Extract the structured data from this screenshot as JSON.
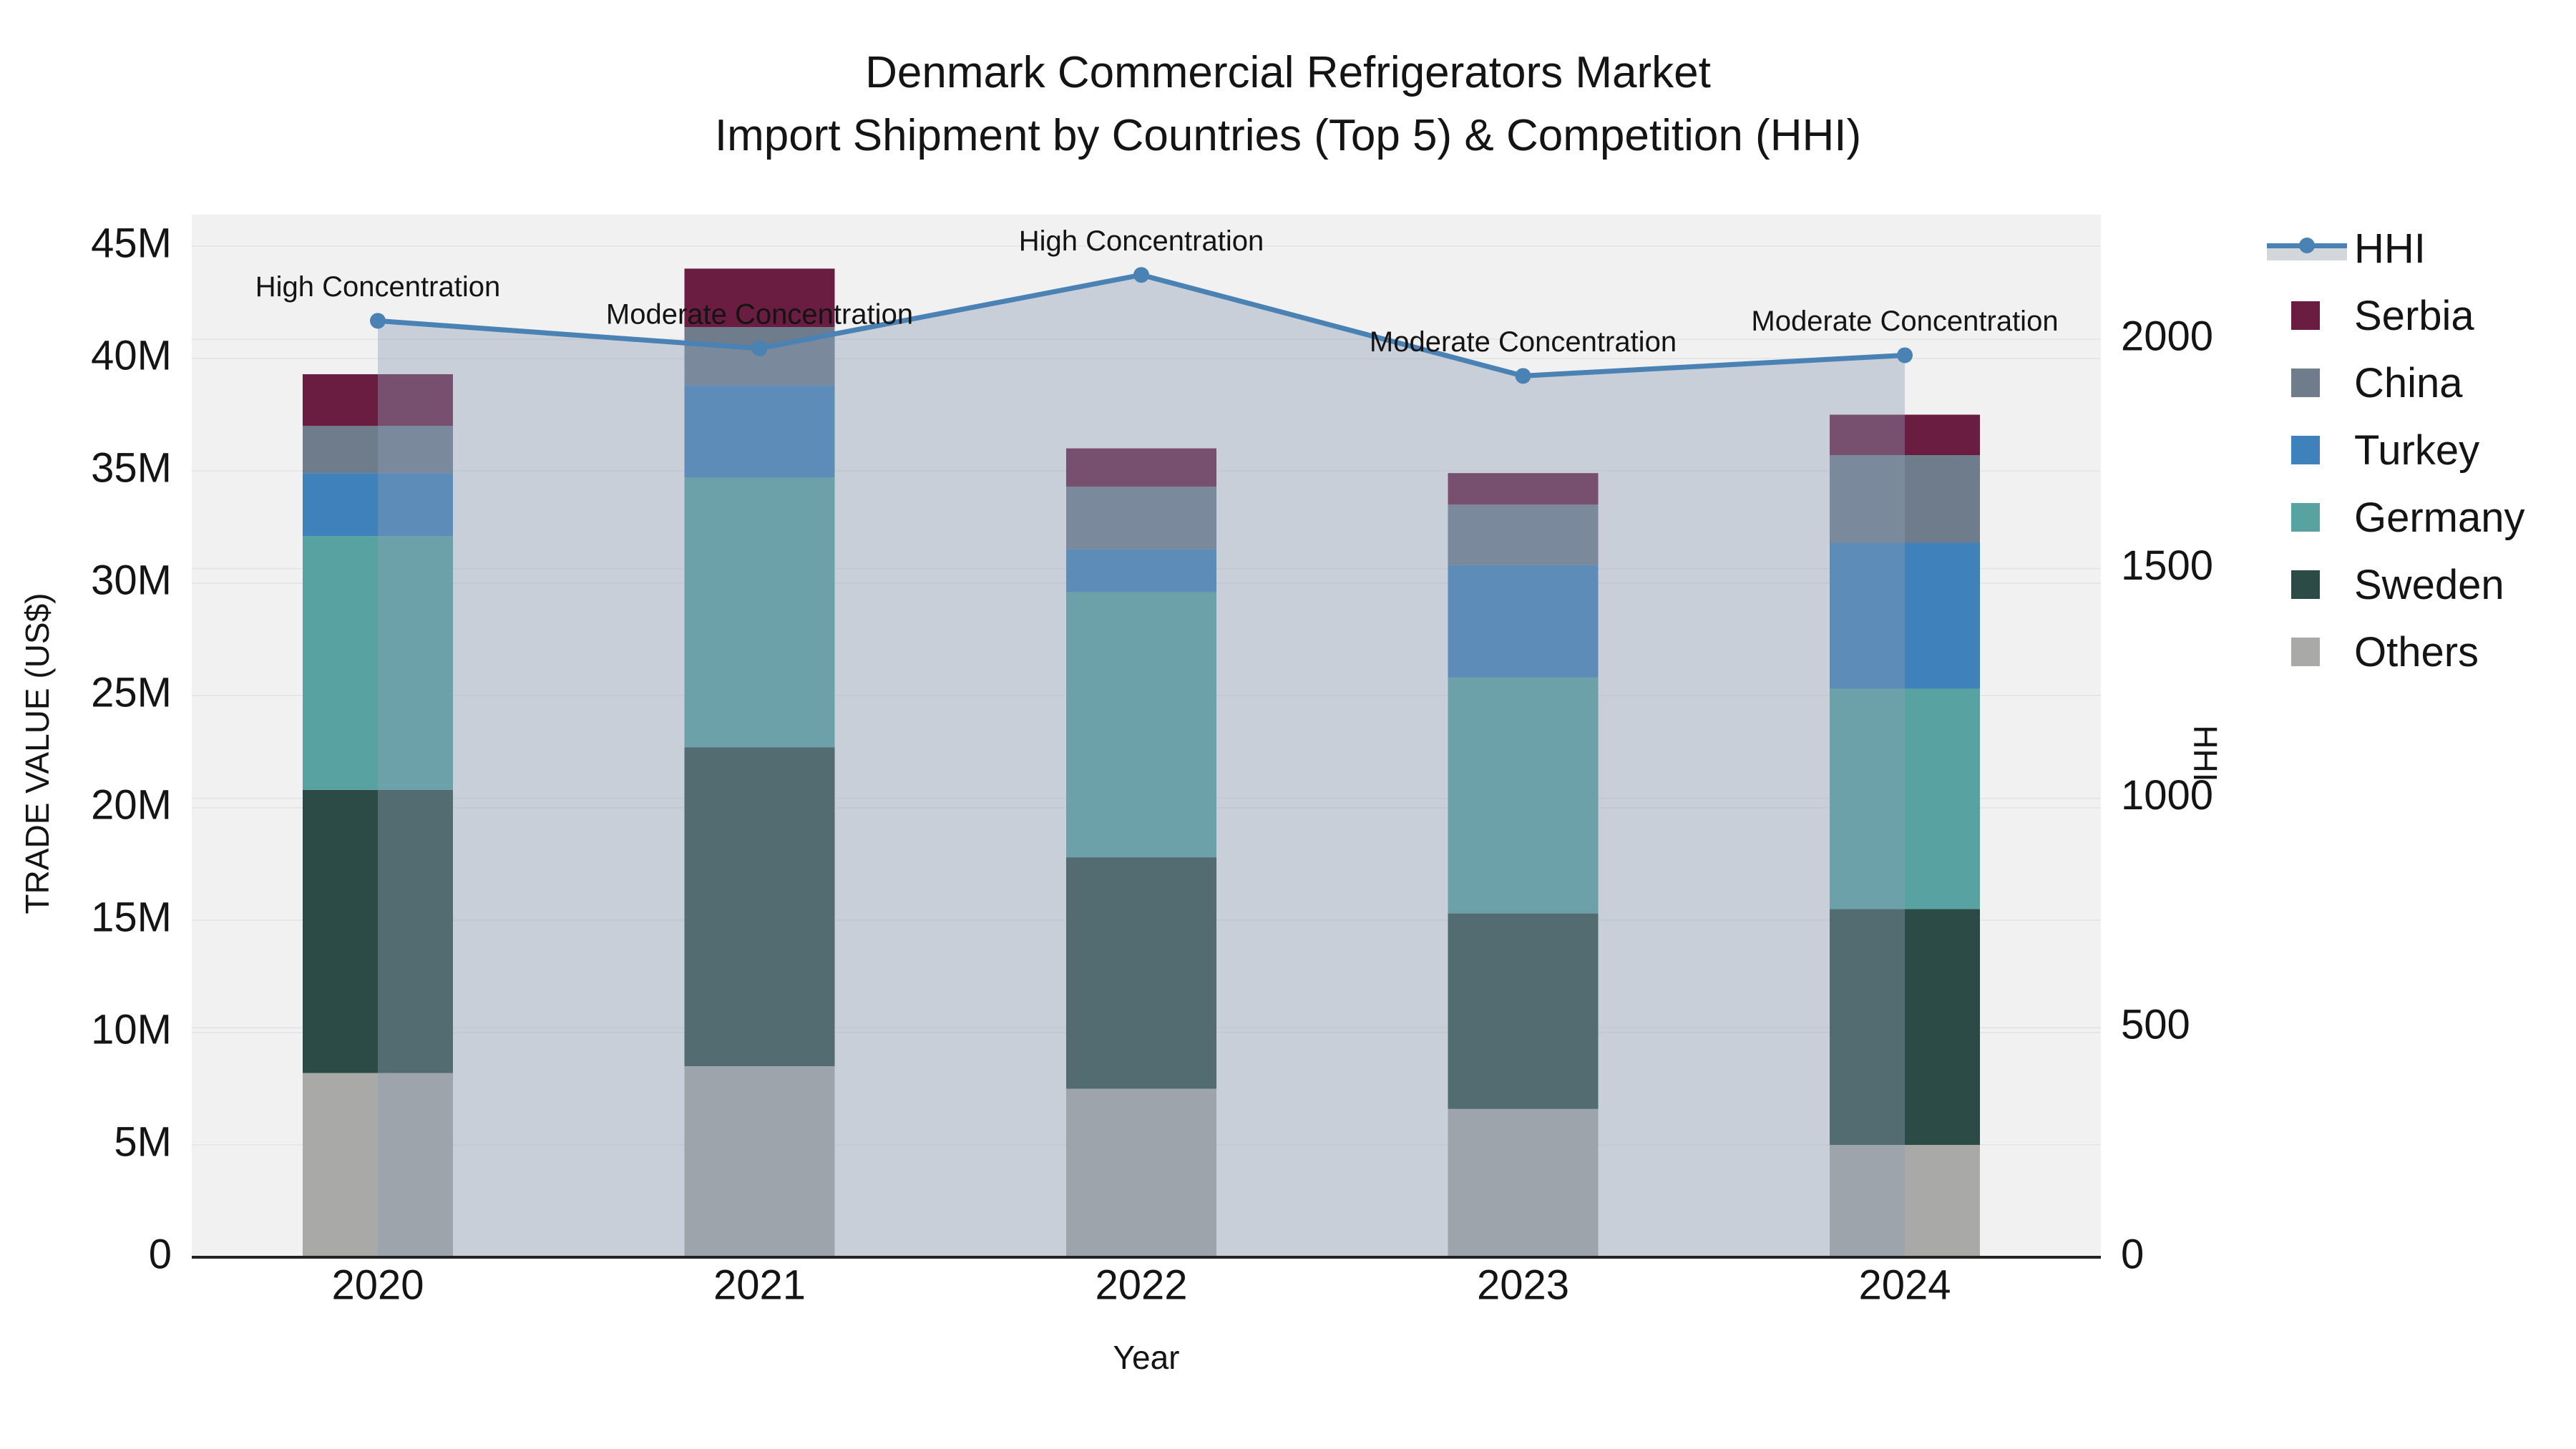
{
  "title": {
    "line1": "Denmark Commercial Refrigerators Market",
    "line2": "Import Shipment by Countries (Top 5) & Competition (HHI)"
  },
  "axes": {
    "left": {
      "title": "TRADE VALUE (US$)"
    },
    "right": {
      "title": "HHI"
    },
    "x": {
      "title": "Year"
    }
  },
  "chart_data": {
    "type": "bar",
    "subtype": "stacked bars with overlay line (area fill to zero)",
    "categories": [
      "2020",
      "2021",
      "2022",
      "2023",
      "2024"
    ],
    "values_unit": "USD millions",
    "series": [
      {
        "name": "Others",
        "color": "#a9a9a7",
        "values": [
          8.2,
          8.5,
          7.5,
          6.6,
          5.0
        ]
      },
      {
        "name": "Sweden",
        "color": "#2c4b46",
        "values": [
          12.6,
          14.2,
          10.3,
          8.7,
          10.5
        ]
      },
      {
        "name": "Germany",
        "color": "#58a3a2",
        "values": [
          11.3,
          12.0,
          11.8,
          10.5,
          9.8
        ]
      },
      {
        "name": "Turkey",
        "color": "#3f81bb",
        "values": [
          2.8,
          4.1,
          1.9,
          5.0,
          6.5
        ]
      },
      {
        "name": "China",
        "color": "#6e7c8c",
        "values": [
          2.1,
          2.6,
          2.8,
          2.7,
          3.9
        ]
      },
      {
        "name": "Serbia",
        "color": "#6b1d41",
        "values": [
          2.3,
          2.6,
          1.7,
          1.4,
          1.8
        ]
      }
    ],
    "line": {
      "name": "HHI",
      "color": "#4a82b4",
      "fillcolor": "rgba(141,157,180,0.40)",
      "values": [
        2040,
        1980,
        2140,
        1920,
        1965
      ]
    },
    "annotations": [
      {
        "category": "2020",
        "label": "High Concentration"
      },
      {
        "category": "2021",
        "label": "Moderate Concentration"
      },
      {
        "category": "2022",
        "label": "High Concentration"
      },
      {
        "category": "2023",
        "label": "Moderate Concentration"
      },
      {
        "category": "2024",
        "label": "Moderate Concentration"
      }
    ],
    "left_axis_ticks": [
      {
        "label": "0",
        "value": 0
      },
      {
        "label": "5M",
        "value": 5
      },
      {
        "label": "10M",
        "value": 10
      },
      {
        "label": "15M",
        "value": 15
      },
      {
        "label": "20M",
        "value": 20
      },
      {
        "label": "25M",
        "value": 25
      },
      {
        "label": "30M",
        "value": 30
      },
      {
        "label": "35M",
        "value": 35
      },
      {
        "label": "40M",
        "value": 40
      },
      {
        "label": "45M",
        "value": 45
      }
    ],
    "right_axis_ticks": [
      {
        "label": "0",
        "value": 0
      },
      {
        "label": "500",
        "value": 500
      },
      {
        "label": "1000",
        "value": 1000
      },
      {
        "label": "1500",
        "value": 1500
      },
      {
        "label": "2000",
        "value": 2000
      }
    ],
    "ylim_left_M": [
      0,
      46.4
    ],
    "ylim_right": [
      0,
      2272
    ],
    "grid": true,
    "legend_position": "right"
  },
  "legend": {
    "order": [
      "HHI",
      "Serbia",
      "China",
      "Turkey",
      "Germany",
      "Sweden",
      "Others"
    ]
  },
  "colors": {
    "hhi_line": "#4a82b4",
    "hhi_fill": "rgba(141,157,180,0.40)",
    "hhi_band_legend": "#d3d7dc",
    "plot_bg": "#f1f1f2",
    "gridline": "#e6e6e8",
    "axis_line": "#222222",
    "text": "#141414"
  }
}
